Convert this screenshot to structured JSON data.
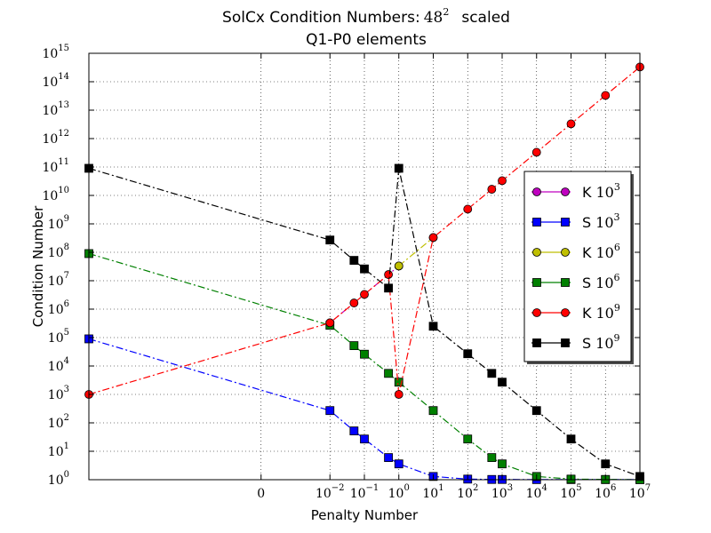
{
  "chart_data": {
    "type": "line",
    "title": "SolCx Condition Numbers:",
    "title_math": "48",
    "title_math_exp": "2",
    "title_tail": "scaled",
    "subtitle": "Q1-P0 elements",
    "xlabel": "Penalty Number",
    "ylabel": "Condition Number",
    "x_scale": "symlog",
    "x_linthresh": 0.001,
    "xlim": [
      -10,
      10000000
    ],
    "y_scale": "log",
    "ylim": [
      1,
      1000000000000000
    ],
    "grid": true,
    "legend_position": "right",
    "x_ticks": [
      {
        "value": 0,
        "base": "0",
        "exp": ""
      },
      {
        "value": 0.01,
        "base": "10",
        "exp": "−2"
      },
      {
        "value": 0.1,
        "base": "10",
        "exp": "−1"
      },
      {
        "value": 1,
        "base": "10",
        "exp": "0"
      },
      {
        "value": 10,
        "base": "10",
        "exp": "1"
      },
      {
        "value": 100,
        "base": "10",
        "exp": "2"
      },
      {
        "value": 1000,
        "base": "10",
        "exp": "3"
      },
      {
        "value": 10000,
        "base": "10",
        "exp": "4"
      },
      {
        "value": 100000,
        "base": "10",
        "exp": "5"
      },
      {
        "value": 1000000,
        "base": "10",
        "exp": "6"
      },
      {
        "value": 10000000,
        "base": "10",
        "exp": "7"
      }
    ],
    "y_ticks": [
      {
        "value": 1,
        "base": "10",
        "exp": "0"
      },
      {
        "value": 10,
        "base": "10",
        "exp": "1"
      },
      {
        "value": 100,
        "base": "10",
        "exp": "2"
      },
      {
        "value": 1000,
        "base": "10",
        "exp": "3"
      },
      {
        "value": 10000,
        "base": "10",
        "exp": "4"
      },
      {
        "value": 100000,
        "base": "10",
        "exp": "5"
      },
      {
        "value": 1000000,
        "base": "10",
        "exp": "6"
      },
      {
        "value": 10000000,
        "base": "10",
        "exp": "7"
      },
      {
        "value": 100000000,
        "base": "10",
        "exp": "8"
      },
      {
        "value": 1000000000,
        "base": "10",
        "exp": "9"
      },
      {
        "value": 10000000000,
        "base": "10",
        "exp": "10"
      },
      {
        "value": 100000000000,
        "base": "10",
        "exp": "11"
      },
      {
        "value": 1000000000000,
        "base": "10",
        "exp": "12"
      },
      {
        "value": 10000000000000,
        "base": "10",
        "exp": "13"
      },
      {
        "value": 100000000000000,
        "base": "10",
        "exp": "14"
      },
      {
        "value": 1000000000000000,
        "base": "10",
        "exp": "15"
      }
    ],
    "series": [
      {
        "name": "K",
        "exp": "3",
        "color": "#bf00bf",
        "marker": "circle",
        "x": [
          0.01,
          1
        ],
        "y": [
          330000,
          33000000
        ]
      },
      {
        "name": "S",
        "exp": "3",
        "color": "#0000ff",
        "marker": "square",
        "x": [
          -10,
          0.01,
          0.05,
          0.1,
          0.5,
          1,
          10,
          100,
          500,
          1000,
          10000,
          100000,
          1000000,
          10000000
        ],
        "y": [
          90000,
          270,
          52,
          27,
          6,
          3.6,
          1.3,
          1.05,
          1.02,
          1.02,
          1.01,
          1.01,
          1.01,
          1.01
        ]
      },
      {
        "name": "K",
        "exp": "6",
        "color": "#bfbf00",
        "marker": "circle",
        "x": [
          1,
          10
        ],
        "y": [
          33000000,
          330000000
        ]
      },
      {
        "name": "S",
        "exp": "6",
        "color": "#008000",
        "marker": "square",
        "x": [
          -10,
          0.01,
          0.05,
          0.1,
          0.5,
          1,
          10,
          100,
          500,
          1000,
          10000,
          100000,
          1000000,
          10000000
        ],
        "y": [
          90000000,
          270000,
          52000,
          26000,
          5500,
          2700,
          270,
          27,
          6,
          3.6,
          1.3,
          1.05,
          1.02,
          1.01
        ]
      },
      {
        "name": "K",
        "exp": "9",
        "color": "#ff0000",
        "marker": "circle",
        "x": [
          -10,
          0.01,
          0.05,
          0.1,
          0.5,
          1,
          10,
          100,
          500,
          1000,
          10000,
          100000,
          1000000,
          10000000
        ],
        "y": [
          1000,
          330000,
          1650000,
          3300000,
          16500000,
          1000,
          330000000,
          3300000000,
          16500000000,
          33000000000,
          330000000000,
          3300000000000,
          33000000000000,
          330000000000000
        ]
      },
      {
        "name": "S",
        "exp": "9",
        "color": "#000000",
        "marker": "square",
        "x": [
          -10,
          0.01,
          0.05,
          0.1,
          0.5,
          1,
          10,
          100,
          500,
          1000,
          10000,
          100000,
          1000000,
          10000000
        ],
        "y": [
          90000000000,
          270000000,
          52000000,
          26000000,
          5500000,
          90000000000,
          250000,
          27000,
          5500,
          2700,
          270,
          27,
          3.6,
          1.3
        ]
      }
    ]
  }
}
